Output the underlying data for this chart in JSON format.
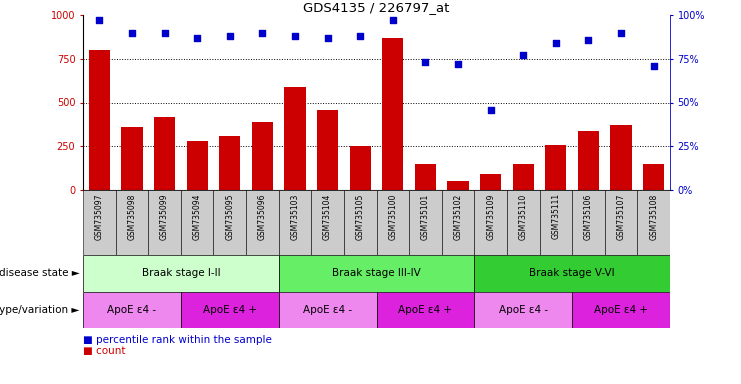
{
  "title": "GDS4135 / 226797_at",
  "samples": [
    "GSM735097",
    "GSM735098",
    "GSM735099",
    "GSM735094",
    "GSM735095",
    "GSM735096",
    "GSM735103",
    "GSM735104",
    "GSM735105",
    "GSM735100",
    "GSM735101",
    "GSM735102",
    "GSM735109",
    "GSM735110",
    "GSM735111",
    "GSM735106",
    "GSM735107",
    "GSM735108"
  ],
  "counts": [
    800,
    360,
    420,
    280,
    310,
    390,
    590,
    460,
    250,
    870,
    150,
    50,
    90,
    150,
    260,
    340,
    370,
    150
  ],
  "percentile_ranks": [
    97,
    90,
    90,
    87,
    88,
    90,
    88,
    87,
    88,
    97,
    73,
    72,
    46,
    77,
    84,
    86,
    90,
    71
  ],
  "bar_color": "#cc0000",
  "dot_color": "#0000cc",
  "ylim_left": [
    0,
    1000
  ],
  "ylim_right": [
    0,
    100
  ],
  "yticks_left": [
    0,
    250,
    500,
    750,
    1000
  ],
  "yticks_right": [
    0,
    25,
    50,
    75,
    100
  ],
  "grid_values": [
    250,
    500,
    750
  ],
  "disease_state_groups": [
    {
      "label": "Braak stage I-II",
      "start": 0,
      "end": 6,
      "color": "#ccffcc"
    },
    {
      "label": "Braak stage III-IV",
      "start": 6,
      "end": 12,
      "color": "#66ee66"
    },
    {
      "label": "Braak stage V-VI",
      "start": 12,
      "end": 18,
      "color": "#33cc33"
    }
  ],
  "genotype_groups": [
    {
      "label": "ApoE ε4 -",
      "start": 0,
      "end": 3,
      "color": "#ee88ee"
    },
    {
      "label": "ApoE ε4 +",
      "start": 3,
      "end": 6,
      "color": "#dd22dd"
    },
    {
      "label": "ApoE ε4 -",
      "start": 6,
      "end": 9,
      "color": "#ee88ee"
    },
    {
      "label": "ApoE ε4 +",
      "start": 9,
      "end": 12,
      "color": "#dd22dd"
    },
    {
      "label": "ApoE ε4 -",
      "start": 12,
      "end": 15,
      "color": "#ee88ee"
    },
    {
      "label": "ApoE ε4 +",
      "start": 15,
      "end": 18,
      "color": "#dd22dd"
    }
  ],
  "sample_bg_color": "#cccccc",
  "legend_count_label": "count",
  "legend_pct_label": "percentile rank within the sample",
  "disease_state_label": "disease state",
  "genotype_label": "genotype/variation",
  "left_axis_color": "#cc0000",
  "right_axis_color": "#0000cc"
}
